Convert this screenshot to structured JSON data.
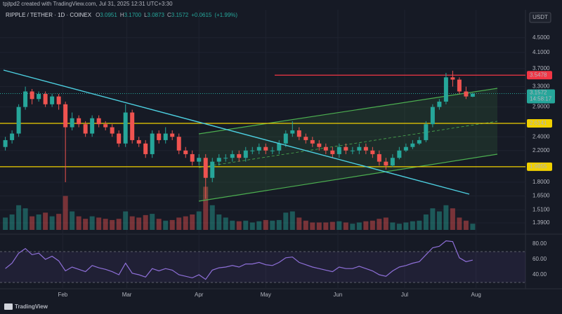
{
  "header": {
    "credit": "tpjtpd2 created with TradingView.com, Jul 31, 2025 12:31 UTC+3:30",
    "logo": "TradingView"
  },
  "chart_data": {
    "type": "candlestick",
    "symbol": "RIPPLE / TETHER · 1D · COINEX",
    "currency": "USDT",
    "quote": [
      {
        "key": "O",
        "value": 3.0951,
        "label": "3.0951"
      },
      {
        "key": "H",
        "value": 3.17,
        "label": "3.1700"
      },
      {
        "key": "L",
        "value": 3.0873,
        "label": "3.0873"
      },
      {
        "key": "C",
        "value": 3.1572,
        "label": "3.1572"
      },
      {
        "value": 0.0615,
        "label": "+0.0615"
      },
      {
        "value": 1.99,
        "label": "(+1.99%)"
      }
    ],
    "log_scale": true,
    "up_color": "#26a69a",
    "down_color": "#ef5350",
    "ylim": [
      1.318,
      5.23
    ],
    "yticks": [
      {
        "value": 4.5,
        "label": "4.5000"
      },
      {
        "value": 4.1,
        "label": "4.1000"
      },
      {
        "value": 3.7,
        "label": "3.7000"
      },
      {
        "value": 3.3,
        "label": "3.3000"
      },
      {
        "value": 2.9,
        "label": "2.9000"
      },
      {
        "value": 2.4,
        "label": "2.4000"
      },
      {
        "value": 2.2,
        "label": "2.2000"
      },
      {
        "value": 1.8,
        "label": "1.8000"
      },
      {
        "value": 1.65,
        "label": "1.6500"
      },
      {
        "value": 1.51,
        "label": "1.5100"
      },
      {
        "value": 1.39,
        "label": "1.3900"
      }
    ],
    "xlim": [
      -0.8,
      77.9
    ],
    "xticks": [
      {
        "value": 8.6,
        "label": "Feb"
      },
      {
        "value": 18.2,
        "label": "Mar"
      },
      {
        "value": 29,
        "label": "Apr"
      },
      {
        "value": 39,
        "label": "May"
      },
      {
        "value": 49.8,
        "label": "Jun"
      },
      {
        "value": 59.8,
        "label": "Jul"
      },
      {
        "value": 70.5,
        "label": "Aug"
      }
    ],
    "open": [
      2.25,
      2.35,
      2.45,
      2.9,
      3.2,
      3.05,
      3.15,
      2.95,
      3.1,
      2.95,
      2.55,
      2.7,
      2.6,
      2.45,
      2.7,
      2.6,
      2.55,
      2.45,
      2.3,
      2.8,
      2.35,
      2.3,
      2.15,
      2.45,
      2.35,
      2.45,
      2.4,
      2.2,
      2.15,
      2.05,
      2.1,
      1.85,
      2.05,
      2.1,
      2.1,
      2.15,
      2.1,
      2.2,
      2.2,
      2.25,
      2.2,
      2.2,
      2.3,
      2.45,
      2.5,
      2.4,
      2.35,
      2.3,
      2.25,
      2.2,
      2.15,
      2.25,
      2.2,
      2.2,
      2.25,
      2.2,
      2.15,
      2.05,
      2.0,
      2.1,
      2.2,
      2.25,
      2.3,
      2.35,
      2.6,
      2.9,
      3.0,
      3.5,
      3.45,
      3.2,
      3.0951
    ],
    "high": [
      2.4,
      2.5,
      2.95,
      3.3,
      3.25,
      3.2,
      3.2,
      3.15,
      3.15,
      3.0,
      2.8,
      2.75,
      2.65,
      2.75,
      2.75,
      2.65,
      2.6,
      2.5,
      2.95,
      2.85,
      2.4,
      2.35,
      2.5,
      2.5,
      2.55,
      2.5,
      2.45,
      2.25,
      2.2,
      2.15,
      2.15,
      2.1,
      2.15,
      2.15,
      2.2,
      2.2,
      2.25,
      2.25,
      2.3,
      2.3,
      2.25,
      2.35,
      2.5,
      2.65,
      2.55,
      2.45,
      2.4,
      2.35,
      2.3,
      2.25,
      2.3,
      2.3,
      2.25,
      2.3,
      2.3,
      2.25,
      2.2,
      2.1,
      2.15,
      2.25,
      2.3,
      2.35,
      2.4,
      2.65,
      2.95,
      3.05,
      3.6,
      3.65,
      3.5,
      3.3,
      3.17
    ],
    "low": [
      2.2,
      2.3,
      2.4,
      2.85,
      2.95,
      3.0,
      2.9,
      2.9,
      2.85,
      1.8,
      2.5,
      2.55,
      2.4,
      2.4,
      2.55,
      2.5,
      2.4,
      2.25,
      2.25,
      2.3,
      2.25,
      2.1,
      2.1,
      2.3,
      2.3,
      2.35,
      2.15,
      2.1,
      2.0,
      2.0,
      1.62,
      1.8,
      2.0,
      2.05,
      2.05,
      2.05,
      2.05,
      2.15,
      2.15,
      2.15,
      2.15,
      2.15,
      2.25,
      2.4,
      2.35,
      2.3,
      2.25,
      2.2,
      2.15,
      2.1,
      2.1,
      2.15,
      2.15,
      2.15,
      2.15,
      2.1,
      2.0,
      1.95,
      1.98,
      2.08,
      2.18,
      2.22,
      2.28,
      2.32,
      2.55,
      2.85,
      2.95,
      3.3,
      3.15,
      3.05,
      3.0873
    ],
    "close": [
      2.35,
      2.45,
      2.9,
      3.2,
      3.05,
      3.15,
      2.95,
      3.1,
      2.95,
      2.55,
      2.7,
      2.6,
      2.45,
      2.7,
      2.6,
      2.55,
      2.45,
      2.3,
      2.8,
      2.35,
      2.3,
      2.15,
      2.45,
      2.35,
      2.45,
      2.4,
      2.2,
      2.15,
      2.05,
      2.1,
      1.85,
      2.05,
      2.1,
      2.1,
      2.15,
      2.1,
      2.2,
      2.2,
      2.25,
      2.2,
      2.2,
      2.3,
      2.45,
      2.5,
      2.4,
      2.35,
      2.3,
      2.25,
      2.2,
      2.15,
      2.25,
      2.2,
      2.2,
      2.25,
      2.2,
      2.15,
      2.05,
      2.0,
      2.1,
      2.2,
      2.25,
      2.3,
      2.35,
      2.6,
      2.9,
      3.0,
      3.5,
      3.45,
      3.2,
      3.1,
      3.1572
    ],
    "volume": [
      20,
      25,
      40,
      35,
      22,
      25,
      28,
      22,
      26,
      55,
      30,
      22,
      18,
      22,
      20,
      18,
      16,
      18,
      30,
      22,
      20,
      24,
      26,
      18,
      15,
      16,
      20,
      22,
      25,
      30,
      70,
      40,
      25,
      20,
      15,
      14,
      15,
      12,
      14,
      16,
      15,
      16,
      28,
      30,
      20,
      15,
      12,
      12,
      12,
      13,
      14,
      12,
      10,
      12,
      14,
      15,
      18,
      20,
      12,
      10,
      12,
      14,
      15,
      25,
      35,
      30,
      40,
      35,
      20,
      15,
      10
    ],
    "volume_lim": [
      0,
      100
    ],
    "price_lines": [
      {
        "value": 3.5478,
        "color": "#f23645"
      },
      {
        "value": 2.6141,
        "color": "#f0d000"
      },
      {
        "value": 1.9855,
        "color": "#f0d000"
      }
    ],
    "last_price": {
      "value": 3.1572,
      "countdown": "14:58:17",
      "color": "#26a69a"
    },
    "rsi": {
      "color": "#8e6fd8",
      "values": [
        48,
        55,
        68,
        74,
        66,
        68,
        60,
        64,
        58,
        45,
        50,
        47,
        44,
        52,
        49,
        47,
        44,
        40,
        55,
        42,
        40,
        37,
        48,
        45,
        48,
        46,
        40,
        38,
        36,
        40,
        34,
        46,
        49,
        50,
        52,
        50,
        54,
        54,
        56,
        53,
        52,
        56,
        62,
        63,
        56,
        53,
        50,
        48,
        46,
        44,
        50,
        48,
        48,
        51,
        48,
        45,
        40,
        38,
        45,
        50,
        52,
        55,
        57,
        66,
        75,
        77,
        84,
        83,
        62,
        57,
        59
      ],
      "ylim": [
        25.5,
        87.3
      ],
      "band": [
        30,
        70
      ],
      "yticks": [
        {
          "value": 80,
          "label": "80.00"
        },
        {
          "value": 60,
          "label": "60.00"
        },
        {
          "value": 40,
          "label": "40.00"
        }
      ]
    }
  }
}
